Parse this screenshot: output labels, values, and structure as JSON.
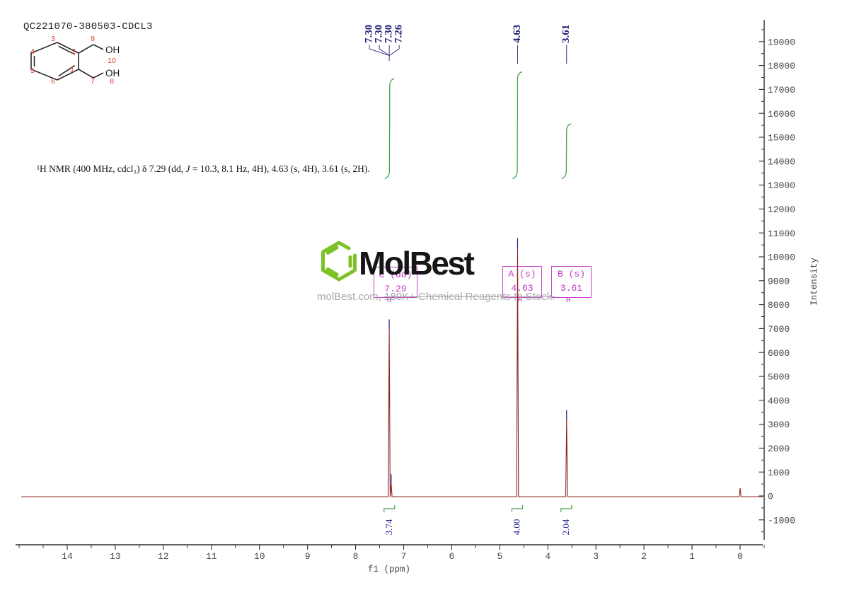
{
  "title": "QC221070-380503-CDCL3",
  "molecule": {
    "n1": "1",
    "n2": "2",
    "n3": "3",
    "n4": "4",
    "n5": "5",
    "n6": "6",
    "n7": "7",
    "n8": "8",
    "n9": "9",
    "n10": "10",
    "oh_top": "OH",
    "oh_bottom": "OH"
  },
  "citation": {
    "p1": "¹H NMR (400 MHz, cdcl₃) δ 7.29 (dd, ",
    "j": "J",
    "p2": " = 10.3, 8.1 Hz, 4H), 4.63 (s, 4H), 3.61 (s, 2H)."
  },
  "watermark": {
    "brand": "MolBest",
    "line_prefix": "molBest.com, ",
    "line_struck": "180K+ Chemical Reagents In Stock."
  },
  "chart_data": {
    "type": "line",
    "title": "",
    "xlabel": "f1 (ppm)",
    "ylabel": "Intensity",
    "xlim": [
      15.1,
      -0.5
    ],
    "ylim": [
      -1850,
      19950
    ],
    "x_ticks": [
      14,
      13,
      12,
      11,
      10,
      9,
      8,
      7,
      6,
      5,
      4,
      3,
      2,
      1,
      0
    ],
    "y_ticks": [
      19000,
      18000,
      17000,
      16000,
      15000,
      14000,
      13000,
      12000,
      11000,
      10000,
      9000,
      8000,
      7000,
      6000,
      5000,
      4000,
      3000,
      2000,
      1000,
      0,
      -1000
    ],
    "grid": false,
    "peaks": [
      {
        "ppm": 7.3,
        "intensity": 7000,
        "marked": true
      },
      {
        "ppm": 7.26,
        "intensity": 520,
        "marked": true
      },
      {
        "ppm": 4.63,
        "intensity": 10400,
        "marked": true
      },
      {
        "ppm": 3.61,
        "intensity": 3200,
        "marked": true
      },
      {
        "ppm": 0.0,
        "intensity": 330,
        "marked": false
      }
    ],
    "top_label_clusters": [
      {
        "labels": [
          "7.30",
          "7.30",
          "7.30",
          "7.26"
        ],
        "ppm": 7.3
      },
      {
        "labels": [
          "4.63"
        ],
        "ppm": 4.63
      },
      {
        "labels": [
          "3.61"
        ],
        "ppm": 3.61
      }
    ],
    "multiplets": [
      {
        "header": "C (dd)",
        "shift": "7.29",
        "ppm": 7.29,
        "integral_label": "3.74",
        "integral_value": 3.74,
        "marker": "H"
      },
      {
        "header": "A (s)",
        "shift": "4.63",
        "ppm": 4.63,
        "integral_label": "4.00",
        "integral_value": 4.0,
        "marker": "H"
      },
      {
        "header": "B (s)",
        "shift": "3.61",
        "ppm": 3.61,
        "integral_label": "2.04",
        "integral_value": 2.04,
        "marker": "H"
      }
    ],
    "colors": {
      "spectrum": "#8b2323",
      "integral": "#4aa24a",
      "peak_label": "#232378",
      "integral_label": "#28288c",
      "box": "#cc3fcc",
      "axis": "#2f2f2f",
      "tick_label": "#454545",
      "watermark": "#a8a8a8",
      "logo_green": "#7cc226",
      "structure_number": "#e03a2f"
    }
  }
}
